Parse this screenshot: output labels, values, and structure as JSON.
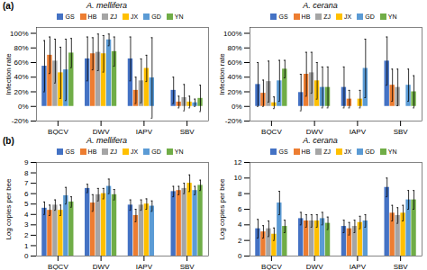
{
  "chart_data": [
    {
      "type": "bar",
      "title": "A. mellifera",
      "annotation": "(a)",
      "ylabel": "Infection rate",
      "categories": [
        "BQCV",
        "DWV",
        "IAPV",
        "SBV"
      ],
      "series": [
        {
          "name": "GS",
          "color": "#4472c4",
          "values": [
            55,
            65,
            65,
            22
          ],
          "errors": [
            35,
            30,
            30,
            18
          ]
        },
        {
          "name": "HB",
          "color": "#ed7d31",
          "values": [
            70,
            72,
            22,
            6
          ],
          "errors": [
            25,
            22,
            18,
            8
          ]
        },
        {
          "name": "ZJ",
          "color": "#a5a5a5",
          "values": [
            62,
            74,
            35,
            12
          ],
          "errors": [
            30,
            25,
            30,
            18
          ]
        },
        {
          "name": "JX",
          "color": "#ffc000",
          "values": [
            46,
            72,
            52,
            6
          ],
          "errors": [
            35,
            25,
            18,
            8
          ]
        },
        {
          "name": "GD",
          "color": "#5b9bd5",
          "values": [
            50,
            91,
            39,
            5
          ],
          "errors": [
            42,
            8,
            55,
            5
          ]
        },
        {
          "name": "YN",
          "color": "#70ad47",
          "values": [
            73,
            75,
            0,
            11
          ],
          "errors": [
            20,
            20,
            0,
            18
          ]
        }
      ],
      "ylim": [
        -20,
        108
      ],
      "yticks": [
        {
          "value": -20,
          "label": "-20%"
        },
        {
          "value": 0,
          "label": "0%"
        },
        {
          "value": 20,
          "label": "20%"
        },
        {
          "value": 40,
          "label": "40%"
        },
        {
          "value": 60,
          "label": "60%"
        },
        {
          "value": 80,
          "label": "80%"
        },
        {
          "value": 100,
          "label": "100%"
        }
      ],
      "legend": "top"
    },
    {
      "type": "bar",
      "title": "A. cerana",
      "ylabel": "Infection rate",
      "categories": [
        "BQCV",
        "DWV",
        "IAPV",
        "SBV"
      ],
      "series": [
        {
          "name": "GS",
          "color": "#4472c4",
          "values": [
            30,
            19,
            26,
            62
          ],
          "errors": [
            30,
            25,
            28,
            33
          ]
        },
        {
          "name": "HB",
          "color": "#ed7d31",
          "values": [
            18,
            44,
            10,
            29
          ],
          "errors": [
            18,
            30,
            12,
            22
          ]
        },
        {
          "name": "ZJ",
          "color": "#a5a5a5",
          "values": [
            34,
            46,
            0,
            26
          ],
          "errors": [
            28,
            28,
            0,
            25
          ]
        },
        {
          "name": "JX",
          "color": "#ffc000",
          "values": [
            5,
            35,
            10,
            0
          ],
          "errors": [
            8,
            25,
            12,
            0
          ]
        },
        {
          "name": "GD",
          "color": "#5b9bd5",
          "values": [
            35,
            26,
            52,
            29
          ],
          "errors": [
            28,
            28,
            40,
            22
          ]
        },
        {
          "name": "YN",
          "color": "#70ad47",
          "values": [
            51,
            26,
            0,
            20
          ],
          "errors": [
            12,
            28,
            0,
            22
          ]
        }
      ],
      "ylim": [
        -20,
        108
      ],
      "yticks": [
        {
          "value": -20,
          "label": "-20%"
        },
        {
          "value": 0,
          "label": "0%"
        },
        {
          "value": 20,
          "label": "20%"
        },
        {
          "value": 40,
          "label": "40%"
        },
        {
          "value": 60,
          "label": "60%"
        },
        {
          "value": 80,
          "label": "80%"
        },
        {
          "value": 100,
          "label": "100%"
        }
      ],
      "legend": "top"
    },
    {
      "type": "bar",
      "title": "A. mellifera",
      "annotation": "(b)",
      "ylabel": "Log copies per bee",
      "categories": [
        "BQCV",
        "DWV",
        "IAPV",
        "SBV"
      ],
      "series": [
        {
          "name": "GS",
          "color": "#4472c4",
          "values": [
            4.6,
            6.5,
            4.9,
            6.2
          ],
          "errors": [
            0.6,
            0.4,
            0.5,
            0.5
          ]
        },
        {
          "name": "HB",
          "color": "#ed7d31",
          "values": [
            4.4,
            5.1,
            3.9,
            6.3
          ],
          "errors": [
            0.5,
            0.8,
            0.6,
            0.4
          ]
        },
        {
          "name": "ZJ",
          "color": "#a5a5a5",
          "values": [
            4.9,
            5.9,
            4.9,
            6.5
          ],
          "errors": [
            0.5,
            0.6,
            0.5,
            0.5
          ]
        },
        {
          "name": "JX",
          "color": "#ffc000",
          "values": [
            4.4,
            6.0,
            5.0,
            7.0
          ],
          "errors": [
            0.5,
            0.5,
            0.5,
            0.8
          ]
        },
        {
          "name": "GD",
          "color": "#5b9bd5",
          "values": [
            5.8,
            6.7,
            4.8,
            6.3
          ],
          "errors": [
            0.8,
            0.7,
            0.5,
            0.4
          ]
        },
        {
          "name": "YN",
          "color": "#70ad47",
          "values": [
            5.2,
            5.9,
            0,
            6.8
          ],
          "errors": [
            0.5,
            0.5,
            0,
            0.5
          ]
        }
      ],
      "ylim": [
        0,
        9
      ],
      "yticks": [
        0,
        1,
        2,
        3,
        4,
        5,
        6,
        7,
        8,
        9
      ],
      "legend": "top"
    },
    {
      "type": "bar",
      "title": "A. cerana",
      "ylabel": "Log copies per bee",
      "categories": [
        "BQCV",
        "DWV",
        "IAPV",
        "SBV"
      ],
      "series": [
        {
          "name": "GS",
          "color": "#4472c4",
          "values": [
            3.5,
            4.8,
            3.8,
            8.8
          ],
          "errors": [
            1.2,
            0.8,
            0.8,
            1.2
          ]
        },
        {
          "name": "HB",
          "color": "#ed7d31",
          "values": [
            3.1,
            4.5,
            3.5,
            5.5
          ],
          "errors": [
            0.8,
            0.8,
            0.8,
            1.0
          ]
        },
        {
          "name": "ZJ",
          "color": "#a5a5a5",
          "values": [
            3.5,
            4.5,
            3.8,
            5.2
          ],
          "errors": [
            1.0,
            0.8,
            0.8,
            1.0
          ]
        },
        {
          "name": "JX",
          "color": "#ffc000",
          "values": [
            2.8,
            4.5,
            4.3,
            5.5
          ],
          "errors": [
            0.8,
            0.8,
            0.8,
            1.0
          ]
        },
        {
          "name": "GD",
          "color": "#5b9bd5",
          "values": [
            6.8,
            4.8,
            4.5,
            7.2
          ],
          "errors": [
            1.5,
            0.8,
            0.8,
            1.2
          ]
        },
        {
          "name": "YN",
          "color": "#70ad47",
          "values": [
            3.8,
            4.2,
            0,
            7.2
          ],
          "errors": [
            0.8,
            0.8,
            0,
            1.2
          ]
        }
      ],
      "ylim": [
        0,
        12
      ],
      "yticks": [
        0,
        2,
        4,
        6,
        8,
        10,
        12
      ],
      "legend": "top"
    }
  ]
}
